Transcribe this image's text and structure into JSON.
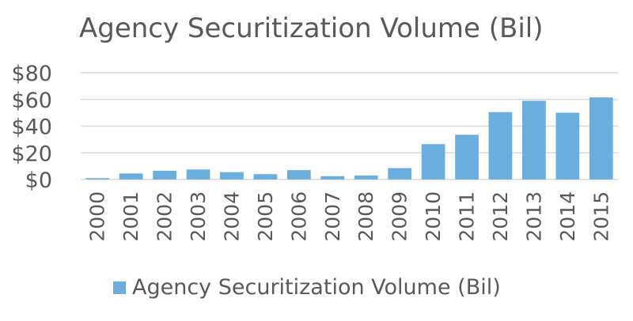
{
  "chart_data": {
    "type": "bar",
    "title": "Agency Securitization Volume (Bil)",
    "xlabel": "",
    "ylabel": "",
    "categories": [
      "2000",
      "2001",
      "2002",
      "2003",
      "2004",
      "2005",
      "2006",
      "2007",
      "2008",
      "2009",
      "2010",
      "2011",
      "2012",
      "2013",
      "2014",
      "2015"
    ],
    "series": [
      {
        "name": "Agency Securitization Volume (Bil)",
        "values": [
          1,
          4.5,
          6.5,
          7.5,
          5.5,
          4,
          7,
          2.5,
          3,
          8.5,
          26.5,
          33.5,
          50.5,
          59,
          50,
          61.5
        ],
        "color": "#6aaee0"
      }
    ],
    "ylim": [
      0,
      80
    ],
    "yticks": [
      0,
      20,
      40,
      60,
      80
    ],
    "ytick_labels": [
      "$0",
      "$20",
      "$40",
      "$60",
      "$80"
    ],
    "grid": true,
    "legend_position": "bottom"
  }
}
